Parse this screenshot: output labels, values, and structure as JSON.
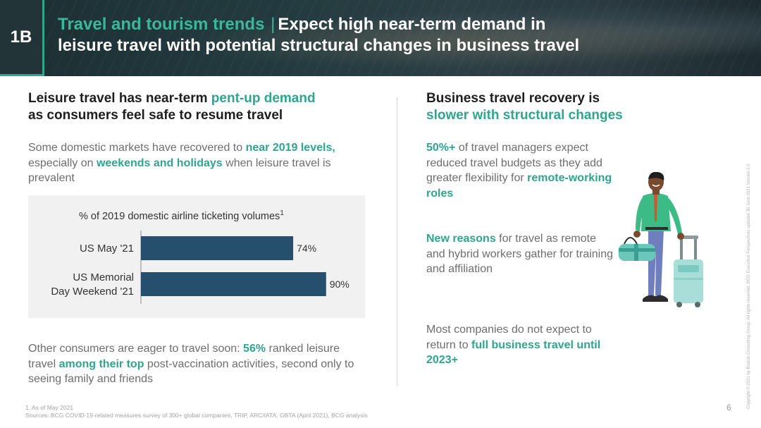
{
  "header": {
    "badge": "1B",
    "title_accent": "Travel and tourism trends",
    "title_sep": "|",
    "title_line1_rest": "Expect high near-term demand in",
    "title_line2": "leisure travel with potential structural changes in business travel"
  },
  "left": {
    "heading_a": "Leisure travel has near-term ",
    "heading_b": "pent-up demand",
    "heading_c": "as consumers feel safe to resume travel",
    "p1_a": "Some domestic markets have recovered to ",
    "p1_b": "near 2019 levels,",
    "p1_c": " especially on ",
    "p1_d": "weekends and holidays",
    "p1_e": " when leisure travel is prevalent",
    "p2_a": "Other consumers are eager to travel soon: ",
    "p2_b": "56%",
    "p2_c": " ranked leisure travel ",
    "p2_d": "among their top",
    "p2_e": " post-vaccination activities, second only to seeing family and friends"
  },
  "chart_data": {
    "type": "bar",
    "orientation": "horizontal",
    "title": "% of 2019 domestic airline ticketing volumes",
    "title_footnote": "1",
    "categories": [
      "US May '21",
      "US Memorial Day Weekend '21"
    ],
    "category_lines": [
      [
        "US May '21"
      ],
      [
        "US Memorial",
        "Day Weekend '21"
      ]
    ],
    "values": [
      74,
      90
    ],
    "value_labels": [
      "74%",
      "90%"
    ],
    "unit": "%",
    "bar_color": "#264f6e",
    "grid": false
  },
  "right": {
    "heading_a": "Business travel recovery is",
    "heading_b": "slower with structural changes",
    "p1_a": "50%+",
    "p1_b": " of travel managers expect reduced travel budgets as they add greater flexibility for ",
    "p1_c": "remote-working roles",
    "p2_a": "New reasons",
    "p2_b": " for travel as remote and hybrid workers gather for training and affiliation",
    "p3_a": "Most companies do not expect to return to ",
    "p3_b": "full business travel until 2023+"
  },
  "footer": {
    "note1": "1. As of May 2021",
    "note2": "Sources: BCG COVID-19-related measures survey of 300+ global companies, TRIP, ARC/IATA, GBTA (April 2021), BCG analysis",
    "page": "6",
    "copyright": "Copyright © 2021 by Boston Consulting Group. All rights reserved. BCG Executive Perspectives updated 30 June 2021 Version 2.0"
  },
  "colors": {
    "accent": "#2fa58e",
    "bar": "#264f6e",
    "header_bg": "#223a3f"
  },
  "icons": {
    "illustration": "business-traveler-illustration"
  }
}
